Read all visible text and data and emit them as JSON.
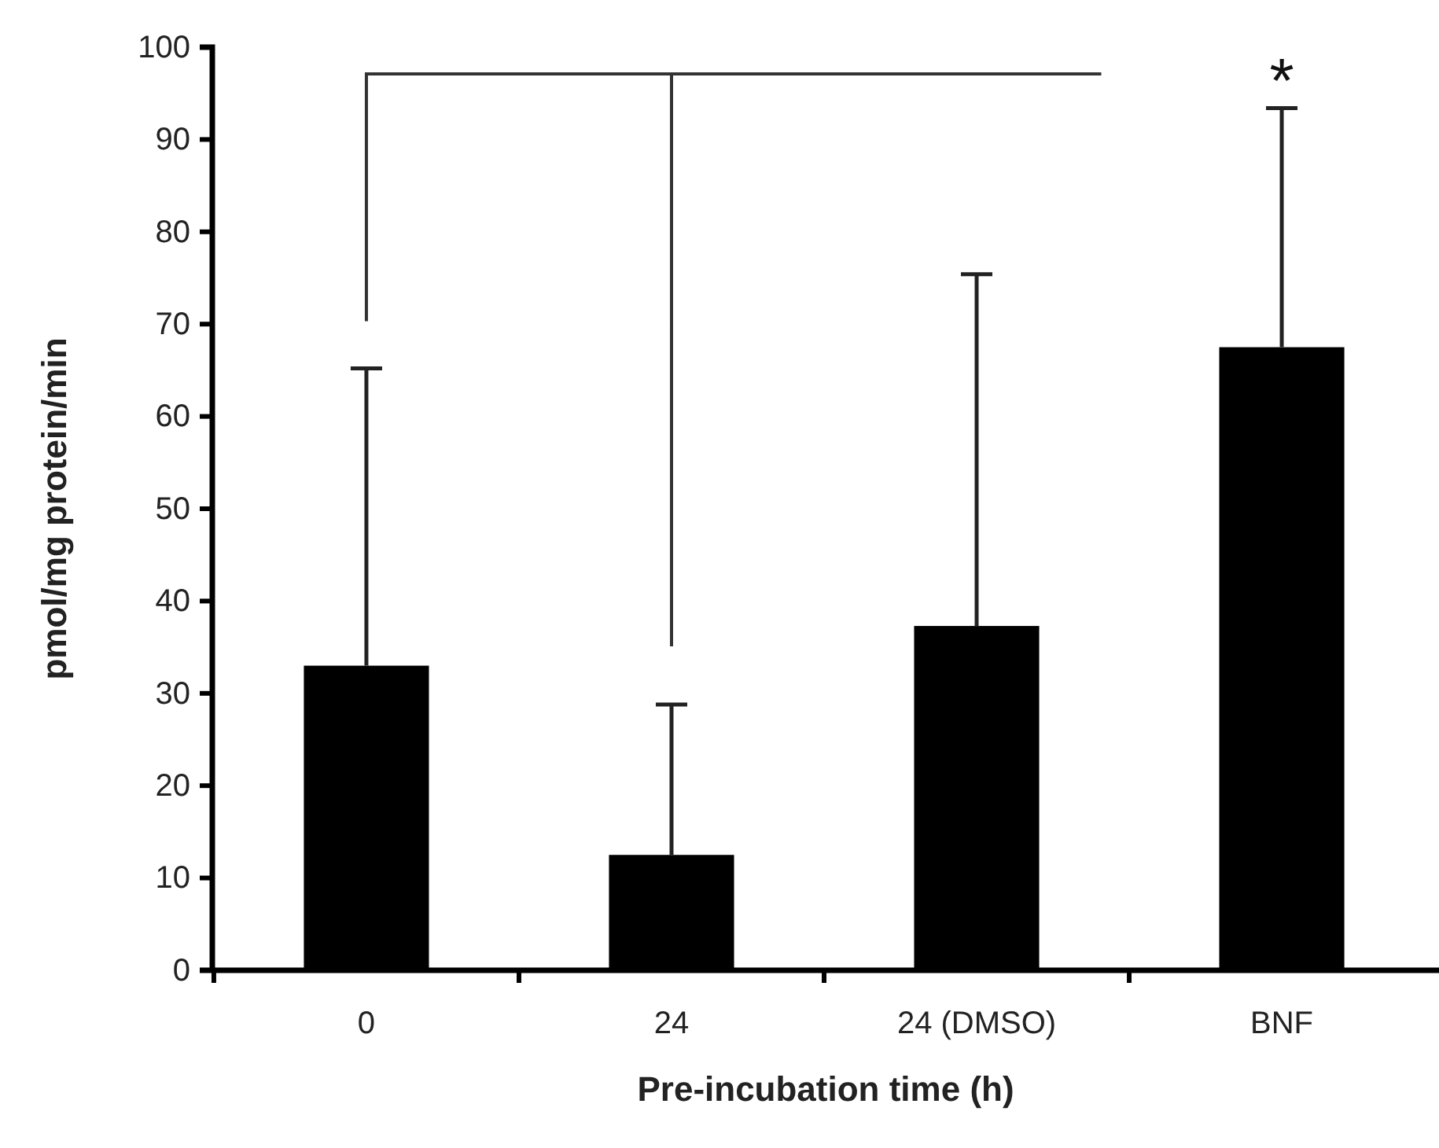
{
  "chart_data": {
    "type": "bar",
    "xlabel": "Pre-incubation time (h)",
    "ylabel": "pmol/mg protein/min",
    "categories": [
      "0",
      "24",
      "24 (DMSO)",
      "BNF"
    ],
    "values": [
      33,
      12.5,
      37.3,
      67.5
    ],
    "errors": [
      [
        33,
        65.2
      ],
      [
        12.5,
        28.8
      ],
      [
        37.3,
        75.4
      ],
      [
        67.5,
        93.4
      ]
    ],
    "color": "#000000",
    "ylim": [
      0,
      100
    ],
    "yticks": [
      0,
      10,
      20,
      30,
      40,
      50,
      60,
      70,
      80,
      90,
      100
    ],
    "annotations": [
      "*"
    ]
  }
}
